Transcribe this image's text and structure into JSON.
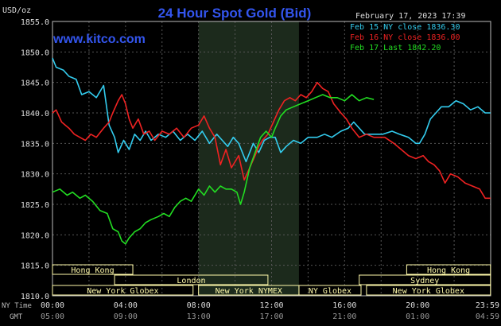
{
  "chart_data": {
    "type": "line",
    "title": "24 Hour Spot Gold (Bid)",
    "unit_label": "USD/oz",
    "date_label": "February 17, 2023 17:39",
    "watermark": "www.kitco.com",
    "ylim": [
      1810,
      1855
    ],
    "y_ticks": [
      "1855.0",
      "1850.0",
      "1845.0",
      "1840.0",
      "1835.0",
      "1830.0",
      "1825.0",
      "1820.0",
      "1815.0",
      "1810.0"
    ],
    "xlim": [
      0,
      24
    ],
    "ny_time_label": "NY Time",
    "gmt_label": "GMT",
    "ny_ticks": [
      "00:00",
      "04:00",
      "08:00",
      "12:00",
      "16:00",
      "20:00",
      "23:59"
    ],
    "gmt_ticks": [
      "05:00",
      "09:00",
      "13:00",
      "17:00",
      "21:00",
      "01:00",
      "04:59"
    ],
    "shade_range": [
      8,
      13.5
    ],
    "colors": {
      "cyan": "#33ccee",
      "red": "#ee2222",
      "green": "#22dd22",
      "title": "#3355ee",
      "grid": "#555555",
      "axis": "#bbbbbb",
      "session_bg": "#fffaaa"
    },
    "series": [
      {
        "name": "Feb 15 NY close 1836.30",
        "color": "#33ccee",
        "points": [
          [
            0,
            1849
          ],
          [
            0.2,
            1847.5
          ],
          [
            0.6,
            1847
          ],
          [
            0.9,
            1846
          ],
          [
            1.3,
            1845.5
          ],
          [
            1.6,
            1843
          ],
          [
            2.0,
            1843.5
          ],
          [
            2.4,
            1842.5
          ],
          [
            2.8,
            1844.5
          ],
          [
            3.1,
            1838
          ],
          [
            3.4,
            1836
          ],
          [
            3.6,
            1833.5
          ],
          [
            3.9,
            1835.5
          ],
          [
            4.2,
            1834
          ],
          [
            4.5,
            1836.5
          ],
          [
            4.8,
            1835.5
          ],
          [
            5.1,
            1837
          ],
          [
            5.4,
            1835.5
          ],
          [
            5.8,
            1836.5
          ],
          [
            6.2,
            1836
          ],
          [
            6.6,
            1837
          ],
          [
            7.0,
            1835.5
          ],
          [
            7.4,
            1836.5
          ],
          [
            7.8,
            1835.5
          ],
          [
            8.2,
            1837
          ],
          [
            8.6,
            1835
          ],
          [
            9.0,
            1836.5
          ],
          [
            9.3,
            1835.5
          ],
          [
            9.6,
            1834.5
          ],
          [
            9.9,
            1836
          ],
          [
            10.2,
            1835
          ],
          [
            10.6,
            1832
          ],
          [
            11.0,
            1835
          ],
          [
            11.3,
            1833.5
          ],
          [
            11.6,
            1835.5
          ],
          [
            11.9,
            1836
          ],
          [
            12.2,
            1836
          ],
          [
            12.5,
            1833.5
          ],
          [
            12.8,
            1834.5
          ],
          [
            13.2,
            1835.5
          ],
          [
            13.6,
            1835
          ],
          [
            14.0,
            1836
          ],
          [
            14.5,
            1836
          ],
          [
            14.9,
            1836.5
          ],
          [
            15.3,
            1836
          ],
          [
            15.8,
            1837
          ],
          [
            16.2,
            1837.5
          ],
          [
            16.5,
            1838.5
          ],
          [
            16.8,
            1837.5
          ],
          [
            17.1,
            1836.5
          ],
          [
            17.6,
            1836.5
          ],
          [
            18.1,
            1836.5
          ],
          [
            18.6,
            1837
          ],
          [
            19.0,
            1836.5
          ],
          [
            19.5,
            1836
          ],
          [
            19.9,
            1835
          ],
          [
            20.1,
            1835
          ],
          [
            20.4,
            1836.5
          ],
          [
            20.7,
            1839
          ],
          [
            21.0,
            1840
          ],
          [
            21.3,
            1841
          ],
          [
            21.7,
            1841
          ],
          [
            22.1,
            1842
          ],
          [
            22.5,
            1841.5
          ],
          [
            22.9,
            1840.5
          ],
          [
            23.3,
            1841
          ],
          [
            23.7,
            1840
          ],
          [
            23.99,
            1840
          ]
        ]
      },
      {
        "name": "Feb 16 NY close 1836.00",
        "color": "#ee2222",
        "points": [
          [
            0,
            1840
          ],
          [
            0.2,
            1840.5
          ],
          [
            0.5,
            1838.5
          ],
          [
            0.9,
            1837.5
          ],
          [
            1.2,
            1836.5
          ],
          [
            1.5,
            1836
          ],
          [
            1.8,
            1835.5
          ],
          [
            2.1,
            1836.5
          ],
          [
            2.4,
            1836
          ],
          [
            2.8,
            1837.5
          ],
          [
            3.1,
            1838.5
          ],
          [
            3.3,
            1840
          ],
          [
            3.6,
            1842
          ],
          [
            3.8,
            1843
          ],
          [
            4.0,
            1841.5
          ],
          [
            4.2,
            1839
          ],
          [
            4.4,
            1837.5
          ],
          [
            4.7,
            1839
          ],
          [
            5.0,
            1836.5
          ],
          [
            5.3,
            1837
          ],
          [
            5.6,
            1835.5
          ],
          [
            6.0,
            1837
          ],
          [
            6.4,
            1836.5
          ],
          [
            6.8,
            1837.5
          ],
          [
            7.2,
            1836
          ],
          [
            7.6,
            1837.5
          ],
          [
            8.0,
            1838
          ],
          [
            8.3,
            1839.5
          ],
          [
            8.6,
            1837.5
          ],
          [
            8.9,
            1836
          ],
          [
            9.2,
            1831.5
          ],
          [
            9.5,
            1834
          ],
          [
            9.8,
            1831
          ],
          [
            10.2,
            1833
          ],
          [
            10.5,
            1829
          ],
          [
            10.8,
            1831
          ],
          [
            11.1,
            1833
          ],
          [
            11.3,
            1834.5
          ],
          [
            11.5,
            1835.5
          ],
          [
            11.8,
            1836.5
          ],
          [
            12.1,
            1838.5
          ],
          [
            12.4,
            1840.5
          ],
          [
            12.7,
            1842
          ],
          [
            13.0,
            1842.5
          ],
          [
            13.3,
            1842
          ],
          [
            13.6,
            1843
          ],
          [
            13.9,
            1842.5
          ],
          [
            14.2,
            1843.5
          ],
          [
            14.5,
            1845
          ],
          [
            14.8,
            1844
          ],
          [
            15.1,
            1843.5
          ],
          [
            15.4,
            1841.5
          ],
          [
            15.8,
            1840
          ],
          [
            16.1,
            1839
          ],
          [
            16.4,
            1837.5
          ],
          [
            16.8,
            1836
          ],
          [
            17.2,
            1836.5
          ],
          [
            17.6,
            1836
          ],
          [
            18.2,
            1836
          ],
          [
            18.7,
            1835
          ],
          [
            19.1,
            1834
          ],
          [
            19.5,
            1833
          ],
          [
            19.9,
            1832.5
          ],
          [
            20.3,
            1833
          ],
          [
            20.6,
            1832
          ],
          [
            20.9,
            1831.5
          ],
          [
            21.2,
            1830.5
          ],
          [
            21.5,
            1828.5
          ],
          [
            21.8,
            1830
          ],
          [
            22.2,
            1829.5
          ],
          [
            22.6,
            1828.5
          ],
          [
            23.0,
            1828
          ],
          [
            23.4,
            1827.5
          ],
          [
            23.7,
            1826
          ],
          [
            23.99,
            1826
          ]
        ]
      },
      {
        "name": "Feb 17 Last 1842.20",
        "color": "#22dd22",
        "points": [
          [
            0,
            1827
          ],
          [
            0.4,
            1827.5
          ],
          [
            0.8,
            1826.5
          ],
          [
            1.1,
            1827
          ],
          [
            1.5,
            1826
          ],
          [
            1.8,
            1826.5
          ],
          [
            2.2,
            1825.5
          ],
          [
            2.6,
            1824
          ],
          [
            3.0,
            1823.5
          ],
          [
            3.3,
            1821
          ],
          [
            3.6,
            1820.5
          ],
          [
            3.8,
            1819
          ],
          [
            4.0,
            1818.5
          ],
          [
            4.2,
            1819.5
          ],
          [
            4.5,
            1820.5
          ],
          [
            4.8,
            1821
          ],
          [
            5.1,
            1822
          ],
          [
            5.4,
            1822.5
          ],
          [
            5.8,
            1823
          ],
          [
            6.1,
            1823.5
          ],
          [
            6.4,
            1823
          ],
          [
            6.7,
            1824.5
          ],
          [
            7.0,
            1825.5
          ],
          [
            7.3,
            1826
          ],
          [
            7.6,
            1825.5
          ],
          [
            8.0,
            1827.5
          ],
          [
            8.3,
            1826.5
          ],
          [
            8.6,
            1828
          ],
          [
            8.9,
            1827
          ],
          [
            9.2,
            1828
          ],
          [
            9.5,
            1827.5
          ],
          [
            9.8,
            1827.5
          ],
          [
            10.1,
            1827
          ],
          [
            10.3,
            1825
          ],
          [
            10.5,
            1827
          ],
          [
            10.8,
            1831
          ],
          [
            11.1,
            1833.5
          ],
          [
            11.4,
            1836
          ],
          [
            11.7,
            1837
          ],
          [
            12.0,
            1836
          ],
          [
            12.2,
            1837.5
          ],
          [
            12.5,
            1839.5
          ],
          [
            12.8,
            1840.5
          ],
          [
            13.2,
            1841
          ],
          [
            13.6,
            1841.5
          ],
          [
            14.0,
            1842
          ],
          [
            14.4,
            1842.5
          ],
          [
            14.8,
            1843
          ],
          [
            15.2,
            1842.5
          ],
          [
            15.6,
            1842.5
          ],
          [
            16.0,
            1842
          ],
          [
            16.4,
            1843
          ],
          [
            16.8,
            1842
          ],
          [
            17.2,
            1842.5
          ],
          [
            17.6,
            1842.2
          ]
        ]
      }
    ],
    "sessions": [
      {
        "label": "Hong Kong",
        "row": 0,
        "start": 0,
        "end": 4.4
      },
      {
        "label": "Hong Kong",
        "row": 0,
        "start": 19.4,
        "end": 23.99
      },
      {
        "label": "London",
        "row": 1,
        "start": 3.4,
        "end": 11.8
      },
      {
        "label": "Sydney",
        "row": 1,
        "start": 16.8,
        "end": 23.99
      },
      {
        "label": "New York Globex",
        "row": 2,
        "start": 0,
        "end": 7.7
      },
      {
        "label": "New York NYMEX",
        "row": 2,
        "start": 8.0,
        "end": 13.5
      },
      {
        "label": "NY Globex",
        "row": 2,
        "start": 13.5,
        "end": 16.9
      },
      {
        "label": "New York Globex",
        "row": 2,
        "start": 17.2,
        "end": 23.99
      }
    ]
  }
}
